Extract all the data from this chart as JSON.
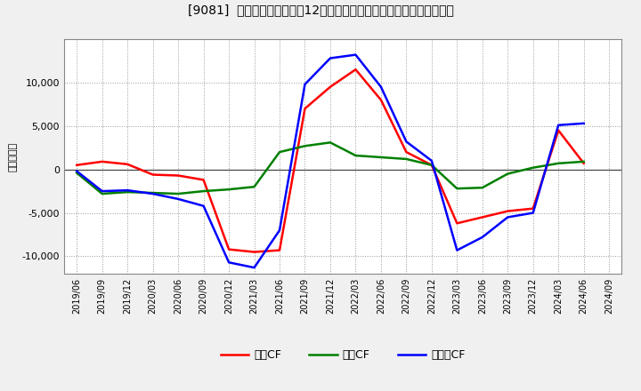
{
  "title": "[9081]  キャッシュフローの12か月移動合計の対前年同期増減額の推移",
  "ylabel": "（百万円）",
  "background_color": "#f0f0f0",
  "plot_bg_color": "#ffffff",
  "grid_color": "#999999",
  "x_labels": [
    "2019/06",
    "2019/09",
    "2019/12",
    "2020/03",
    "2020/06",
    "2020/09",
    "2020/12",
    "2021/03",
    "2021/06",
    "2021/09",
    "2021/12",
    "2022/03",
    "2022/06",
    "2022/09",
    "2022/12",
    "2023/03",
    "2023/06",
    "2023/09",
    "2023/12",
    "2024/03",
    "2024/06",
    "2024/09"
  ],
  "営業CF": [
    500,
    900,
    600,
    -600,
    -700,
    -1200,
    -9200,
    -9500,
    -9300,
    7000,
    9500,
    11500,
    8000,
    2000,
    500,
    -6200,
    -5500,
    -4800,
    -4500,
    4500,
    700,
    null
  ],
  "投賃CF": [
    -400,
    -2800,
    -2600,
    -2700,
    -2800,
    -2500,
    -2300,
    -2000,
    2000,
    2700,
    3100,
    1600,
    1400,
    1200,
    500,
    -2200,
    -2100,
    -500,
    200,
    700,
    900,
    null
  ],
  "フリーCF": [
    -200,
    -2500,
    -2400,
    -2800,
    -3400,
    -4200,
    -10700,
    -11300,
    -7000,
    9800,
    12800,
    13200,
    9500,
    3200,
    1000,
    -9300,
    -7800,
    -5500,
    -5000,
    5100,
    5300,
    null
  ],
  "line_colors": {
    "営業CF": "#ff0000",
    "投賃CF": "#008000",
    "フリーCF": "#0000ff"
  },
  "ylim": [
    -12000,
    15000
  ],
  "yticks": [
    -10000,
    -5000,
    0,
    5000,
    10000
  ],
  "line_width": 1.8
}
